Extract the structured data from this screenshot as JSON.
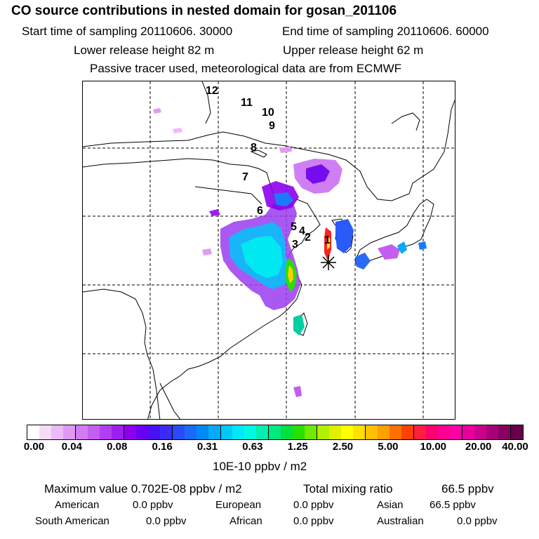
{
  "header": {
    "title": "CO  source contributions in nested domain for gosan_201106",
    "start_label": "Start time of sampling 20110606. 30000",
    "end_label": "End time of sampling 20110606. 60000",
    "lower_label": "Lower release height   82 m",
    "upper_label": "Upper release height   62 m",
    "tracer_note": "Passive tracer used, meteorological data are from ECMWF"
  },
  "map": {
    "trajectory_points": [
      "1",
      "2",
      "3",
      "4",
      "5",
      "6",
      "7",
      "8",
      "9",
      "10",
      "11",
      "12"
    ],
    "receptor": "gosan"
  },
  "colorbar": {
    "ticks": [
      "0.00",
      "0.04",
      "0.08",
      "0.16",
      "0.31",
      "0.63",
      "1.25",
      "2.50",
      "5.00",
      "10.00",
      "20.00",
      "40.00"
    ],
    "unit": "10E-10 ppbv / m2",
    "colors": [
      "#ffffff",
      "#f6dcf9",
      "#ecbaf5",
      "#e09af2",
      "#d27cf0",
      "#c35ff0",
      "#b13ef0",
      "#9e1ef0",
      "#8c00ee",
      "#6a00f0",
      "#4a10f4",
      "#3a2cf8",
      "#2a4af8",
      "#1a6af8",
      "#008af8",
      "#00aaf8",
      "#00c8f8",
      "#00e8f8",
      "#00f8e0",
      "#00f0b0",
      "#00e880",
      "#00e040",
      "#28e000",
      "#70e800",
      "#b0f000",
      "#e0f000",
      "#ffff00",
      "#ffe000",
      "#ffc000",
      "#ffa000",
      "#ff7000",
      "#ff4000",
      "#ff2040",
      "#ff0070",
      "#ff0090",
      "#ff00a8",
      "#e8009c",
      "#c8008c",
      "#a80078",
      "#880064",
      "#680048"
    ]
  },
  "stats": {
    "max_label": "Maximum value  0.702E-08 ppbv / m2",
    "total_label": "Total mixing ratio",
    "total_value": "66.5 ppbv"
  },
  "regions": [
    {
      "name": "American",
      "value": "0.0 ppbv"
    },
    {
      "name": "European",
      "value": "0.0 ppbv"
    },
    {
      "name": "Asian",
      "value": "66.5 ppbv"
    },
    {
      "name": "South American",
      "value": "0.0 ppbv"
    },
    {
      "name": "African",
      "value": "0.0 ppbv"
    },
    {
      "name": "Australian",
      "value": "0.0 ppbv"
    }
  ]
}
